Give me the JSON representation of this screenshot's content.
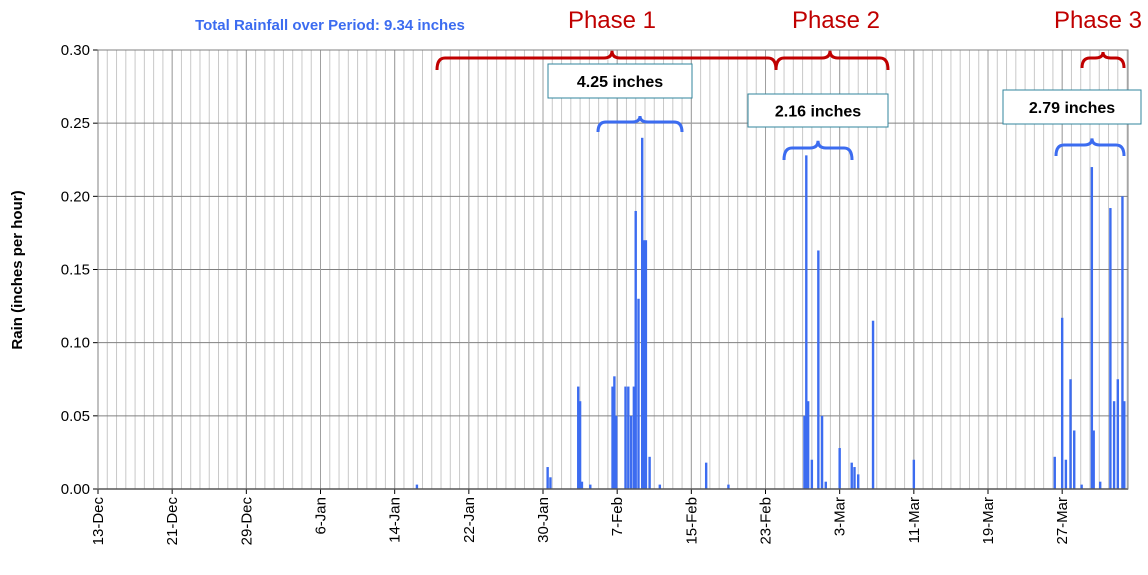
{
  "chart_data": {
    "type": "bar",
    "title": "Total Rainfall over Period: 9.34 inches",
    "y_label": "Rain (inches per hour)",
    "color": "#3c6cf0",
    "x": [
      34.4,
      48.5,
      48.8,
      51.8,
      52.0,
      52.2,
      53.1,
      55.5,
      55.7,
      55.9,
      56.9,
      57.2,
      57.5,
      57.8,
      58.0,
      58.3,
      58.7,
      58.9,
      59.1,
      59.5,
      60.6,
      65.6,
      68.0,
      76.2,
      76.4,
      76.6,
      77.0,
      77.7,
      78.1,
      78.5,
      80.0,
      81.3,
      81.6,
      82.0,
      83.6,
      88.0,
      103.2,
      104.0,
      104.4,
      104.9,
      105.3,
      106.1,
      107.2,
      107.4,
      108.1,
      109.2,
      109.6,
      110.0,
      110.5,
      110.7
    ],
    "values": [
      0.003,
      0.015,
      0.008,
      0.07,
      0.06,
      0.005,
      0.003,
      0.07,
      0.077,
      0.05,
      0.07,
      0.07,
      0.05,
      0.07,
      0.19,
      0.13,
      0.24,
      0.17,
      0.17,
      0.022,
      0.003,
      0.018,
      0.003,
      0.05,
      0.228,
      0.06,
      0.02,
      0.163,
      0.05,
      0.005,
      0.028,
      0.018,
      0.015,
      0.01,
      0.115,
      0.02,
      0.022,
      0.117,
      0.02,
      0.075,
      0.04,
      0.003,
      0.22,
      0.04,
      0.005,
      0.192,
      0.06,
      0.075,
      0.2,
      0.06
    ],
    "xlim": [
      0,
      111.1
    ],
    "xticks": [
      {
        "value": 0,
        "label": "13-Dec"
      },
      {
        "value": 8,
        "label": "21-Dec"
      },
      {
        "value": 16,
        "label": "29-Dec"
      },
      {
        "value": 24,
        "label": "6-Jan"
      },
      {
        "value": 32,
        "label": "14-Jan"
      },
      {
        "value": 40,
        "label": "22-Jan"
      },
      {
        "value": 48,
        "label": "30-Jan"
      },
      {
        "value": 56,
        "label": "7-Feb"
      },
      {
        "value": 64,
        "label": "15-Feb"
      },
      {
        "value": 72,
        "label": "23-Feb"
      },
      {
        "value": 80,
        "label": "3-Mar"
      },
      {
        "value": 88,
        "label": "11-Mar"
      },
      {
        "value": 96,
        "label": "19-Mar"
      },
      {
        "value": 104,
        "label": "27-Mar"
      }
    ],
    "ylim": [
      0,
      0.3
    ],
    "yticks": [
      {
        "value": 0,
        "label": "0.00"
      },
      {
        "value": 0.05,
        "label": "0.05"
      },
      {
        "value": 0.1,
        "label": "0.10"
      },
      {
        "value": 0.15,
        "label": "0.15"
      },
      {
        "value": 0.2,
        "label": "0.20"
      },
      {
        "value": 0.25,
        "label": "0.25"
      },
      {
        "value": 0.3,
        "label": "0.30"
      }
    ],
    "grid": true,
    "phases": [
      "Phase 1",
      "Phase 2",
      "Phase 3"
    ],
    "phase_totals": [
      "4.25 inches",
      "2.16 inches",
      "2.79 inches"
    ]
  }
}
